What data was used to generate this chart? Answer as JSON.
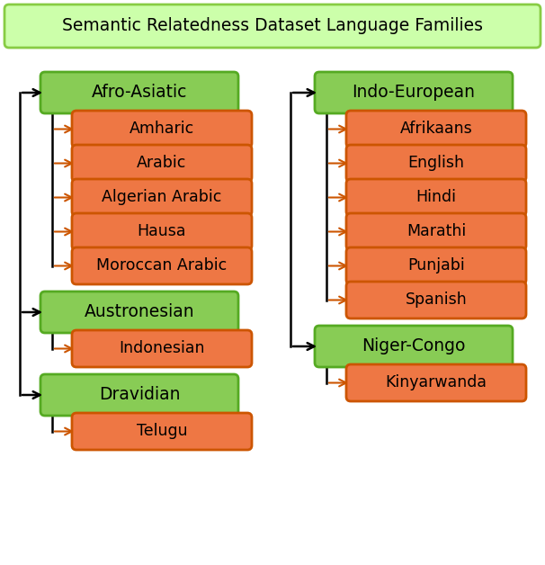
{
  "title": "Semantic Relatedness Dataset Language Families",
  "title_bg": "#ccffaa",
  "title_border": "#88cc44",
  "family_bg_left": "#88cc55",
  "family_bg_right": "#aadd66",
  "family_border": "#55aa22",
  "lang_bg": "#ee7744",
  "lang_border": "#cc5500",
  "arrow_color": "#cc5500",
  "line_color": "#000000",
  "left_families": [
    {
      "name": "Afro-Asiatic",
      "languages": [
        "Amharic",
        "Arabic",
        "Algerian Arabic",
        "Hausa",
        "Moroccan Arabic"
      ]
    },
    {
      "name": "Austronesian",
      "languages": [
        "Indonesian"
      ]
    },
    {
      "name": "Dravidian",
      "languages": [
        "Telugu"
      ]
    }
  ],
  "right_families": [
    {
      "name": "Indo-European",
      "languages": [
        "Afrikaans",
        "English",
        "Hindi",
        "Marathi",
        "Punjabi",
        "Spanish"
      ]
    },
    {
      "name": "Niger-Congo",
      "languages": [
        "Kinyarwanda"
      ]
    }
  ],
  "figsize": [
    6.06,
    6.28
  ],
  "dpi": 100
}
